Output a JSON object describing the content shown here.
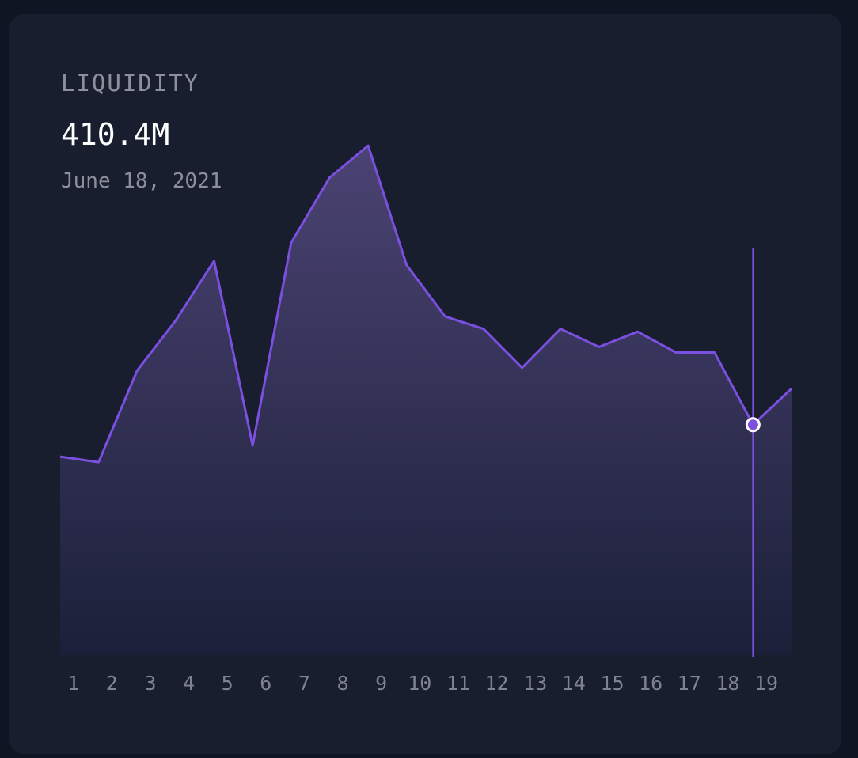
{
  "header": {
    "label": "LIQUIDITY",
    "value": "410.4M",
    "date": "June 18, 2021"
  },
  "colors": {
    "line": "#7b4fe0",
    "fill_top": "#4b4373",
    "fill_bottom": "#1b2039",
    "background": "#181e2e"
  },
  "chart_data": {
    "type": "area",
    "title": "",
    "xlabel": "",
    "ylabel": "",
    "x": [
      0,
      1,
      2,
      3,
      4,
      5,
      6,
      7,
      8,
      9,
      10,
      11,
      12,
      13,
      14,
      15,
      16,
      17,
      18,
      19
    ],
    "tick_labels": [
      "1",
      "2",
      "3",
      "4",
      "5",
      "6",
      "7",
      "8",
      "9",
      "10",
      "11",
      "12",
      "13",
      "14",
      "15",
      "16",
      "17",
      "18",
      "19"
    ],
    "values": [
      268,
      264,
      330,
      366,
      409,
      276,
      422,
      469,
      492,
      406,
      369,
      360,
      332,
      360,
      347,
      358,
      343,
      343,
      291,
      317
    ],
    "ylim": [
      125,
      520
    ],
    "highlight": {
      "index": 18.0,
      "value": 291
    },
    "grid": false,
    "legend": "none"
  }
}
